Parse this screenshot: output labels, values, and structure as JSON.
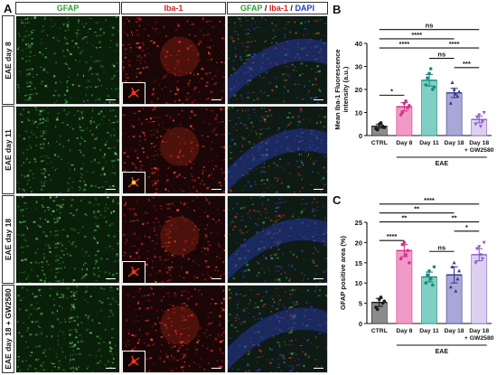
{
  "panel_a": {
    "letter": "A",
    "columns": {
      "gfap": "GFAP",
      "iba1": "Iba-1",
      "merge_gfap": "GFAP",
      "merge_sep1": " / ",
      "merge_iba1": "Iba-1",
      "merge_sep2": " / ",
      "merge_dapi": "DAPI"
    },
    "rows": [
      "EAE day 8",
      "EAE day 11",
      "EAE day 18",
      "EAE day 18 + GW2580"
    ]
  },
  "colors": {
    "gfap": "#2e9e2e",
    "iba1": "#d42020",
    "dapi": "#2838c8",
    "ctrl_bar": "#8c8c8c",
    "day8_bar": "#f09ac8",
    "day11_bar": "#7fcfc4",
    "day18_bar": "#a8a8d8",
    "gw_bar": "#dcd0f0",
    "ctrl_err": "#1a1a1a",
    "day8_err": "#d6338c",
    "day11_err": "#1a8a7a",
    "day18_err": "#3a3a8a",
    "gw_err": "#8a5ac8"
  },
  "chart_data": [
    {
      "panel": "B",
      "type": "bar",
      "title": "",
      "ylabel": "Mean Iba-1 Fluorescence intensity (a.u.)",
      "ylabel_line1": "Mean Iba-1 Fluorescence",
      "ylabel_line2": "intensity (a.u.)",
      "ylim": [
        0,
        40
      ],
      "yticks": [
        0,
        10,
        20,
        30,
        40
      ],
      "categories": [
        "CTRL",
        "Day 8",
        "Day 11",
        "Day 18",
        "Day 18"
      ],
      "category_sub": [
        "",
        "",
        "",
        "",
        "+ GW2580"
      ],
      "group_label": "EAE",
      "values": [
        4,
        12.5,
        24,
        18.5,
        7
      ],
      "errors": [
        0.8,
        1.8,
        2.5,
        2,
        1.5
      ],
      "points": [
        [
          3,
          5,
          4,
          2.5,
          5.5,
          3.5
        ],
        [
          9,
          14,
          12,
          10,
          15,
          13
        ],
        [
          22,
          27,
          20,
          25,
          29,
          21
        ],
        [
          14,
          20,
          17,
          23,
          18,
          19
        ],
        [
          5,
          9,
          6,
          8,
          4,
          10
        ]
      ],
      "markers": [
        "circle",
        "circle",
        "circle",
        "triangle",
        "triangle-down"
      ],
      "significance": [
        {
          "from": 0,
          "to": 4,
          "label": "ns",
          "level": 46
        },
        {
          "from": 0,
          "to": 3,
          "label": "****",
          "level": 42
        },
        {
          "from": 0,
          "to": 2,
          "label": "****",
          "level": 38
        },
        {
          "from": 2,
          "to": 4,
          "label": "****",
          "level": 38
        },
        {
          "from": 2,
          "to": 3,
          "label": "ns",
          "level": 33.5
        },
        {
          "from": 3,
          "to": 4,
          "label": "***",
          "level": 29.5
        },
        {
          "from": 0,
          "to": 1,
          "label": "*",
          "level": 17.5
        }
      ]
    },
    {
      "panel": "C",
      "type": "bar",
      "title": "",
      "ylabel": "GFAP positive area (%)",
      "ylim": [
        0,
        25
      ],
      "yticks": [
        0,
        5,
        10,
        15,
        20,
        25
      ],
      "categories": [
        "CTRL",
        "Day 8",
        "Day 11",
        "Day 18",
        "Day 18"
      ],
      "category_sub": [
        "",
        "",
        "",
        "",
        "+ GW2580"
      ],
      "group_label": "EAE",
      "values": [
        5.2,
        18,
        11.5,
        12,
        17
      ],
      "errors": [
        1,
        1.5,
        1.2,
        2,
        1.5
      ],
      "points": [
        [
          4,
          6,
          5,
          3.5,
          6.5,
          5.5
        ],
        [
          16,
          20,
          18,
          19.5,
          17,
          15
        ],
        [
          10,
          13,
          9.5,
          12,
          11,
          14
        ],
        [
          9,
          15,
          11,
          14,
          8,
          13
        ],
        [
          15,
          19,
          16,
          18.5,
          17,
          20
        ]
      ],
      "markers": [
        "circle",
        "circle",
        "circle",
        "triangle",
        "triangle-down"
      ],
      "significance": [
        {
          "from": 0,
          "to": 4,
          "label": "****",
          "level": 29.5
        },
        {
          "from": 0,
          "to": 3,
          "label": "**",
          "level": 27.3
        },
        {
          "from": 0,
          "to": 2,
          "label": "**",
          "level": 25.1
        },
        {
          "from": 2,
          "to": 4,
          "label": "**",
          "level": 25.1
        },
        {
          "from": 3,
          "to": 4,
          "label": "*",
          "level": 22.8
        },
        {
          "from": 0,
          "to": 1,
          "label": "****",
          "level": 20.5
        },
        {
          "from": 2,
          "to": 3,
          "label": "ns",
          "level": 17.8
        }
      ]
    }
  ]
}
